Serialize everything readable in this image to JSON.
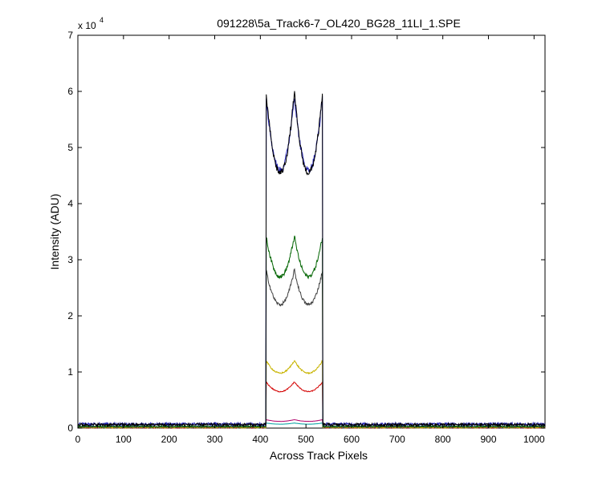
{
  "chart_data": {
    "type": "line",
    "title": "091228\\5a_Track6-7_OL420_BG28_11LI_1.SPE",
    "xlabel": "Across Track Pixels",
    "ylabel": "Intensity (ADU)",
    "y_multiplier_base": "x 10",
    "y_multiplier_exp": "4",
    "xlim": [
      0,
      1024
    ],
    "ylim": [
      0,
      70000
    ],
    "x_ticks": [
      "0",
      "100",
      "200",
      "300",
      "400",
      "500",
      "600",
      "700",
      "800",
      "900",
      "1000"
    ],
    "y_ticks": [
      "0",
      "1",
      "2",
      "3",
      "4",
      "5",
      "6",
      "7"
    ],
    "y_tick_values": [
      0,
      10000,
      20000,
      30000,
      40000,
      50000,
      60000,
      70000
    ],
    "grid": false,
    "legend": "none",
    "bands": [
      {
        "x_start": 413,
        "x_end": 474
      },
      {
        "x_start": 475,
        "x_end": 536
      }
    ],
    "series": [
      {
        "color": "#000000",
        "baseline": 600,
        "edge_level": 59500,
        "dip_level": 45500,
        "role": "main"
      },
      {
        "color": "#1f1fb4",
        "baseline": 700,
        "edge_level": 59000,
        "dip_level": 46000,
        "role": "main"
      },
      {
        "color": "#006400",
        "baseline": 300,
        "edge_level": 34000,
        "dip_level": 27000,
        "role": "mid"
      },
      {
        "color": "#404040",
        "baseline": 200,
        "edge_level": 28000,
        "dip_level": 22000,
        "role": "mid"
      },
      {
        "color": "#c8b400",
        "baseline": 100,
        "edge_level": 12000,
        "dip_level": 9800,
        "role": "low"
      },
      {
        "color": "#d40000",
        "baseline": 100,
        "edge_level": 8200,
        "dip_level": 6500,
        "role": "low"
      },
      {
        "color": "#b0006a",
        "baseline": 100,
        "edge_level": 1500,
        "dip_level": 1200,
        "role": "low"
      },
      {
        "color": "#00a0a0",
        "baseline": 100,
        "edge_level": 900,
        "dip_level": 700,
        "role": "low"
      }
    ]
  }
}
